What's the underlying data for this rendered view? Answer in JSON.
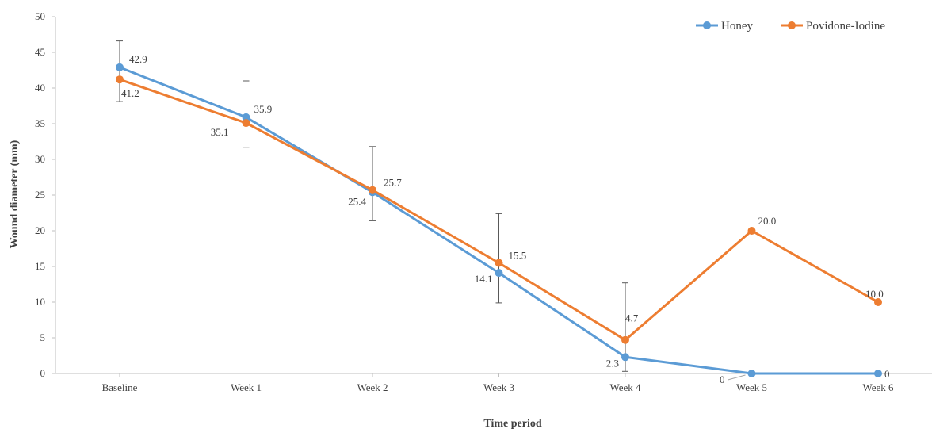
{
  "chart_data": {
    "type": "line",
    "categories": [
      "Baseline",
      "Week 1",
      "Week 2",
      "Week 3",
      "Week 4",
      "Week 5",
      "Week 6"
    ],
    "series": [
      {
        "name": "Honey",
        "color": "#5B9BD5",
        "values": [
          42.9,
          35.9,
          25.4,
          14.1,
          2.3,
          0,
          0
        ],
        "labels": [
          "42.9",
          "35.9",
          "25.4",
          "14.1",
          "2.3",
          "0",
          "0"
        ]
      },
      {
        "name": "Povidone-Iodine",
        "color": "#ED7D31",
        "values": [
          41.2,
          35.1,
          25.7,
          15.5,
          4.7,
          20.0,
          10.0
        ],
        "labels": [
          "41.2",
          "35.1",
          "25.7",
          "15.5",
          "4.7",
          "20.0",
          "10.0"
        ]
      }
    ],
    "error_bars": [
      {
        "category": "Baseline",
        "low": 38.1,
        "high": 46.6
      },
      {
        "category": "Week 1",
        "low": 31.7,
        "high": 41.0
      },
      {
        "category": "Week 2",
        "low": 21.4,
        "high": 31.8
      },
      {
        "category": "Week 3",
        "low": 9.9,
        "high": 22.4
      },
      {
        "category": "Week 4",
        "low": 0.3,
        "high": 12.7
      }
    ],
    "xlabel": "Time period",
    "ylabel": "Wound diameter (mm)",
    "ylim": [
      0,
      50
    ],
    "yticks": [
      0,
      5,
      10,
      15,
      20,
      25,
      30,
      35,
      40,
      45,
      50
    ],
    "grid": false,
    "legend_position": "top-right"
  }
}
